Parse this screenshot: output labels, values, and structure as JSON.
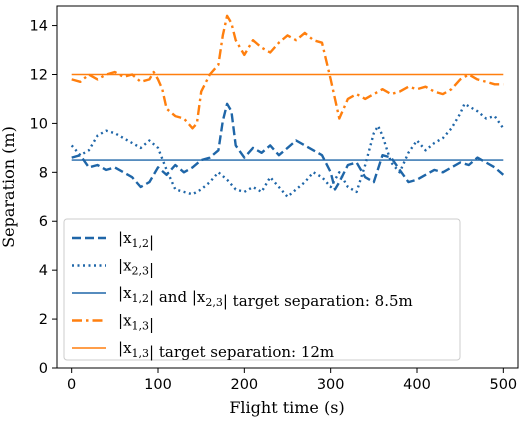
{
  "chart_data": {
    "type": "line",
    "xlabel": "Flight time (s)",
    "ylabel": "Separation (m)",
    "xlim": [
      -17,
      517
    ],
    "ylim": [
      0,
      14.8
    ],
    "x_ticks": [
      0,
      100,
      200,
      300,
      400,
      500
    ],
    "y_ticks": [
      0,
      2,
      4,
      6,
      8,
      10,
      12,
      14
    ],
    "grid": false,
    "legend_position": "lower-left",
    "series": [
      {
        "name": "|x1,2|",
        "style": "dashed",
        "color": "#1f66a8",
        "x": [
          0,
          10,
          20,
          30,
          40,
          50,
          60,
          70,
          80,
          90,
          100,
          110,
          120,
          130,
          140,
          150,
          160,
          170,
          175,
          180,
          185,
          190,
          200,
          210,
          220,
          230,
          240,
          250,
          260,
          270,
          280,
          290,
          300,
          305,
          310,
          320,
          330,
          340,
          350,
          360,
          370,
          380,
          390,
          400,
          410,
          420,
          430,
          440,
          450,
          460,
          470,
          480,
          490,
          500
        ],
        "y": [
          8.6,
          8.7,
          8.2,
          8.3,
          8.1,
          8.2,
          8.0,
          7.8,
          7.4,
          7.6,
          8.2,
          7.9,
          8.3,
          8.0,
          8.2,
          8.5,
          8.6,
          8.9,
          10.1,
          10.8,
          10.5,
          9.1,
          8.6,
          9.0,
          8.8,
          9.1,
          8.7,
          9.0,
          9.3,
          9.1,
          8.9,
          8.7,
          8.0,
          7.3,
          7.6,
          8.3,
          8.4,
          7.8,
          7.6,
          8.7,
          8.6,
          8.1,
          7.6,
          7.7,
          7.9,
          8.1,
          8.0,
          8.2,
          8.4,
          8.3,
          8.6,
          8.4,
          8.2,
          7.9
        ]
      },
      {
        "name": "|x2,3|",
        "style": "dotted",
        "color": "#1f66a8",
        "x": [
          0,
          10,
          20,
          30,
          40,
          50,
          60,
          70,
          80,
          90,
          100,
          110,
          120,
          130,
          140,
          150,
          160,
          170,
          180,
          190,
          200,
          210,
          220,
          230,
          240,
          250,
          260,
          270,
          280,
          290,
          300,
          310,
          320,
          330,
          340,
          350,
          355,
          360,
          370,
          380,
          390,
          400,
          410,
          420,
          430,
          440,
          450,
          455,
          460,
          470,
          480,
          490,
          500
        ],
        "y": [
          9.1,
          8.7,
          8.9,
          9.5,
          9.7,
          9.6,
          9.4,
          9.2,
          9.0,
          9.3,
          9.0,
          8.1,
          7.3,
          7.2,
          7.1,
          7.3,
          7.6,
          8.0,
          7.7,
          7.3,
          7.2,
          7.4,
          7.2,
          7.8,
          7.4,
          7.0,
          7.3,
          7.6,
          8.0,
          7.8,
          7.4,
          8.0,
          7.4,
          7.2,
          8.3,
          9.6,
          9.9,
          9.5,
          8.4,
          8.0,
          8.8,
          9.3,
          8.9,
          9.2,
          9.4,
          9.8,
          10.4,
          10.8,
          10.7,
          10.5,
          10.2,
          10.3,
          9.8
        ]
      },
      {
        "name": "|x1,2| and |x2,3| target separation: 8.5m",
        "style": "solid",
        "color": "#1f66a8",
        "x": [
          0,
          500
        ],
        "y": [
          8.5,
          8.5
        ]
      },
      {
        "name": "|x1,3|",
        "style": "dashdot",
        "color": "#ff7f0e",
        "x": [
          0,
          10,
          20,
          30,
          40,
          50,
          60,
          70,
          80,
          90,
          95,
          100,
          105,
          110,
          120,
          130,
          140,
          145,
          150,
          160,
          170,
          175,
          180,
          185,
          190,
          200,
          210,
          220,
          230,
          240,
          250,
          260,
          270,
          280,
          290,
          300,
          305,
          310,
          320,
          330,
          340,
          350,
          360,
          370,
          380,
          390,
          400,
          410,
          420,
          430,
          440,
          450,
          460,
          470,
          480,
          490,
          500
        ],
        "y": [
          11.8,
          11.7,
          12.0,
          11.8,
          12.0,
          12.1,
          11.9,
          12.0,
          11.7,
          11.8,
          12.1,
          11.8,
          11.4,
          10.6,
          10.3,
          10.2,
          9.8,
          10.0,
          11.3,
          12.0,
          12.4,
          13.6,
          14.4,
          14.1,
          13.4,
          12.8,
          13.4,
          13.1,
          12.9,
          13.3,
          13.6,
          13.4,
          13.7,
          13.4,
          13.3,
          11.8,
          11.0,
          10.2,
          11.0,
          11.2,
          11.0,
          11.2,
          11.4,
          11.2,
          11.3,
          11.5,
          11.4,
          11.5,
          11.3,
          11.2,
          11.4,
          11.8,
          12.0,
          11.8,
          11.7,
          11.6,
          11.6
        ]
      },
      {
        "name": "|x1,3| target separation: 12m",
        "style": "solid",
        "color": "#ff7f0e",
        "x": [
          0,
          500
        ],
        "y": [
          12,
          12
        ]
      }
    ]
  }
}
